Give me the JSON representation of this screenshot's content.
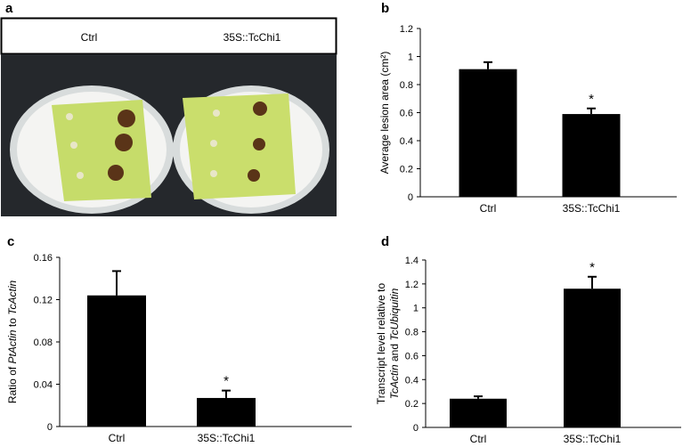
{
  "panel_a": {
    "label": "a",
    "columns": [
      "Ctrl",
      "35S::TcChi1"
    ]
  },
  "chart_data": [
    {
      "type": "bar",
      "label": "b",
      "categories": [
        "Ctrl",
        "35S::TcChi1"
      ],
      "values": [
        0.91,
        0.59
      ],
      "errors": [
        0.05,
        0.04
      ],
      "color": "#000000",
      "ylabel": [
        [
          {
            "text": "Average lesion area (cm²)",
            "italic": false
          }
        ]
      ],
      "ylim": [
        0,
        1.2
      ],
      "yticks": [
        0,
        0.2,
        0.4,
        0.6,
        0.8,
        1,
        1.2
      ],
      "annotations": [
        {
          "index": 1,
          "text": "*"
        }
      ]
    },
    {
      "type": "bar",
      "label": "c",
      "categories": [
        "Ctrl",
        "35S::TcChi1"
      ],
      "values": [
        0.124,
        0.027
      ],
      "errors": [
        0.023,
        0.007
      ],
      "color": "#000000",
      "ylabel": [
        [
          {
            "text": "Ratio of ",
            "italic": false
          },
          {
            "text": "PtActin",
            "italic": true
          },
          {
            "text": " to ",
            "italic": false
          },
          {
            "text": "TcActin",
            "italic": true
          }
        ]
      ],
      "ylim": [
        0,
        0.16
      ],
      "yticks": [
        0,
        0.04,
        0.08,
        0.12,
        0.16
      ],
      "annotations": [
        {
          "index": 1,
          "text": "*"
        }
      ]
    },
    {
      "type": "bar",
      "label": "d",
      "categories": [
        "Ctrl",
        "35S::TcChi1"
      ],
      "values": [
        0.24,
        1.16
      ],
      "errors": [
        0.02,
        0.1
      ],
      "color": "#000000",
      "ylabel": [
        [
          {
            "text": "Transcript level relative to",
            "italic": false
          }
        ],
        [
          {
            "text": "TcActin",
            "italic": true
          },
          {
            "text": " and ",
            "italic": false
          },
          {
            "text": "TcUbiquitin",
            "italic": true
          }
        ]
      ],
      "ylim": [
        0,
        1.4
      ],
      "yticks": [
        0,
        0.2,
        0.4,
        0.6,
        0.8,
        1,
        1.2,
        1.4
      ],
      "annotations": [
        {
          "index": 1,
          "text": "*"
        }
      ]
    }
  ]
}
